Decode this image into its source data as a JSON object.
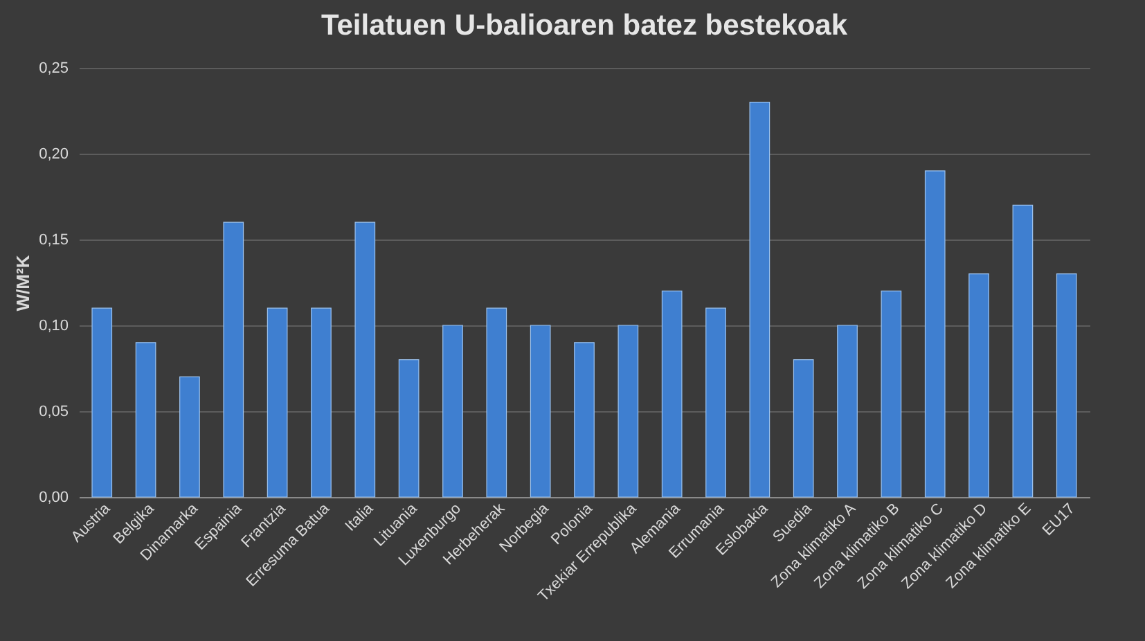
{
  "chart_data": {
    "type": "bar",
    "title": "Teilatuen U-balioaren batez bestekoak",
    "ylabel": "W/M²K",
    "categories": [
      "Austria",
      "Belgika",
      "Dinamarka",
      "Espainia",
      "Frantzia",
      "Erresuma Batua",
      "Italia",
      "Lituania",
      "Luxenburgo",
      "Herbeherak",
      "Norbegia",
      "Polonia",
      "Txekiar Errepublika",
      "Alemania",
      "Errumania",
      "Eslobakia",
      "Suedia",
      "Zona klimatiko A",
      "Zona klimatiko B",
      "Zona klimatiko C",
      "Zona klimatiko D",
      "Zona klimatiko E",
      "EU17"
    ],
    "values": [
      0.11,
      0.09,
      0.07,
      0.16,
      0.11,
      0.11,
      0.16,
      0.08,
      0.1,
      0.11,
      0.1,
      0.09,
      0.1,
      0.12,
      0.11,
      0.23,
      0.08,
      0.1,
      0.12,
      0.19,
      0.13,
      0.17,
      0.13
    ],
    "color": "#3f7fd0",
    "ylim": [
      0,
      0.25
    ],
    "yticks": [
      {
        "value": 0,
        "label": "0,00"
      },
      {
        "value": 0.05,
        "label": "0,05"
      },
      {
        "value": 0.1,
        "label": "0,10"
      },
      {
        "value": 0.15,
        "label": "0,15"
      },
      {
        "value": 0.2,
        "label": "0,20"
      },
      {
        "value": 0.25,
        "label": "0,25"
      }
    ],
    "grid": "y"
  }
}
